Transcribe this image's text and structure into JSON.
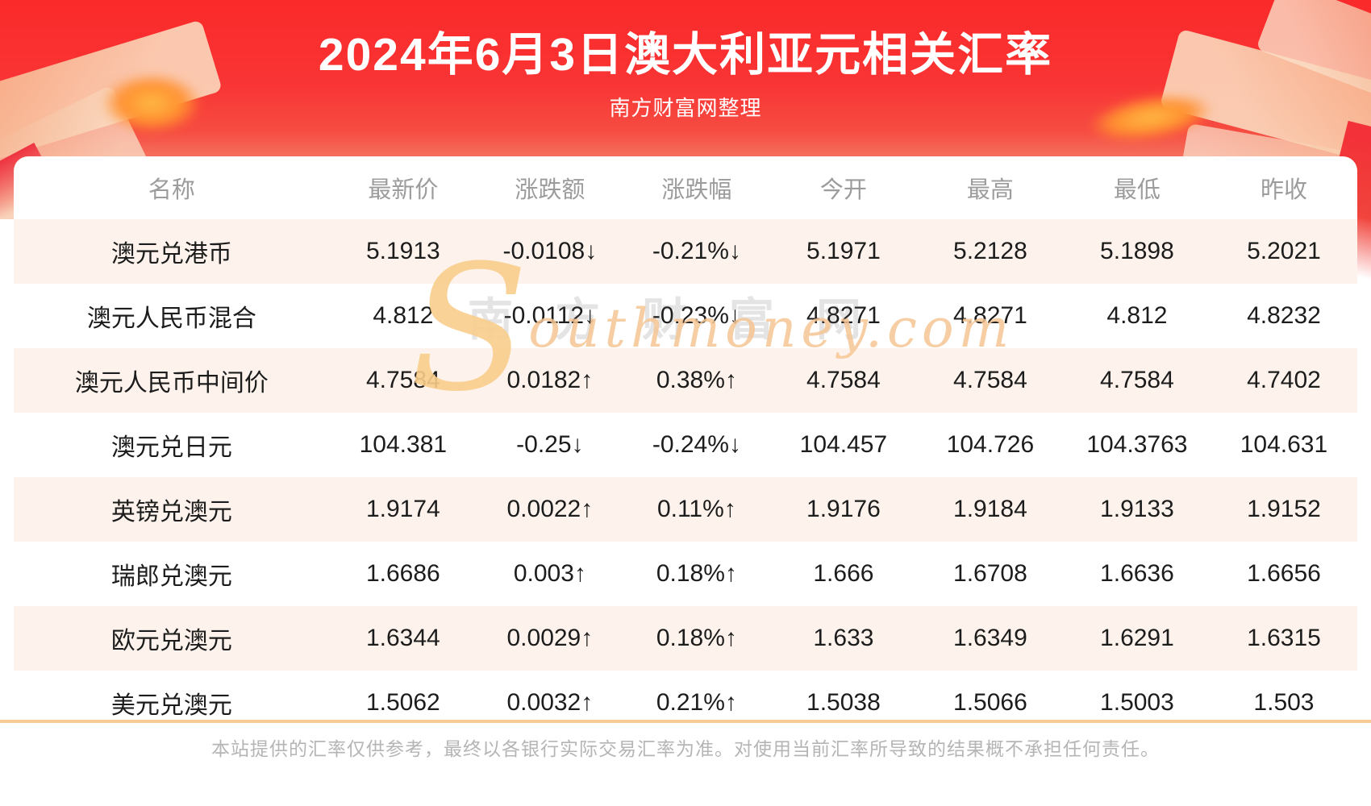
{
  "header": {
    "title": "2024年6月3日澳大利亚元相关汇率",
    "subtitle": "南方财富网整理"
  },
  "table": {
    "columns": [
      "名称",
      "最新价",
      "涨跌额",
      "涨跌幅",
      "今开",
      "最高",
      "最低",
      "昨收"
    ],
    "rows": [
      {
        "name": "澳元兑港币",
        "latest": "5.1913",
        "change": "-0.0108↓",
        "percent": "-0.21%↓",
        "trend": "down",
        "open": "5.1971",
        "high": "5.2128",
        "low": "5.1898",
        "prev_close": "5.2021"
      },
      {
        "name": "澳元人民币混合",
        "latest": "4.812",
        "change": "-0.0112↓",
        "percent": "-0.23%↓",
        "trend": "down",
        "open": "4.8271",
        "high": "4.8271",
        "low": "4.812",
        "prev_close": "4.8232"
      },
      {
        "name": "澳元人民币中间价",
        "latest": "4.7584",
        "change": "0.0182↑",
        "percent": "0.38%↑",
        "trend": "up",
        "open": "4.7584",
        "high": "4.7584",
        "low": "4.7584",
        "prev_close": "4.7402"
      },
      {
        "name": "澳元兑日元",
        "latest": "104.381",
        "change": "-0.25↓",
        "percent": "-0.24%↓",
        "trend": "down",
        "open": "104.457",
        "high": "104.726",
        "low": "104.3763",
        "prev_close": "104.631"
      },
      {
        "name": "英镑兑澳元",
        "latest": "1.9174",
        "change": "0.0022↑",
        "percent": "0.11%↑",
        "trend": "up",
        "open": "1.9176",
        "high": "1.9184",
        "low": "1.9133",
        "prev_close": "1.9152"
      },
      {
        "name": "瑞郎兑澳元",
        "latest": "1.6686",
        "change": "0.003↑",
        "percent": "0.18%↑",
        "trend": "up",
        "open": "1.666",
        "high": "1.6708",
        "low": "1.6636",
        "prev_close": "1.6656"
      },
      {
        "name": "欧元兑澳元",
        "latest": "1.6344",
        "change": "0.0029↑",
        "percent": "0.18%↑",
        "trend": "up",
        "open": "1.633",
        "high": "1.6349",
        "low": "1.6291",
        "prev_close": "1.6315"
      },
      {
        "name": "美元兑澳元",
        "latest": "1.5062",
        "change": "0.0032↑",
        "percent": "0.21%↑",
        "trend": "up",
        "open": "1.5038",
        "high": "1.5066",
        "low": "1.5003",
        "prev_close": "1.503"
      }
    ]
  },
  "watermark": {
    "cn": "南方财富网",
    "en_initial": "S",
    "en_rest": "outhmoney.com"
  },
  "footer": {
    "disclaimer": "本站提供的汇率仅供参考，最终以各银行实际交易汇率为准。对使用当前汇率所导致的结果概不承担任何责任。"
  },
  "colors": {
    "up": "#fd0000",
    "down": "#149414",
    "hero_red": "#fb2a2a",
    "row_alt": "#fdf3ec",
    "divider": "#f8cc96",
    "header_text": "#9c9c9c"
  }
}
